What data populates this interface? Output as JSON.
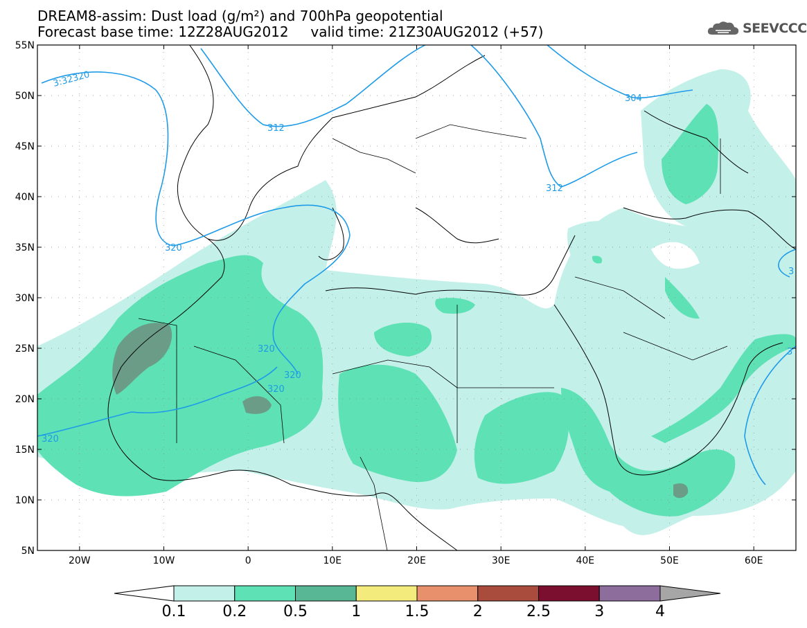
{
  "header": {
    "title_line1": "DREAM8-assim: Dust load (g/m²) and 700hPa geopotential",
    "title_line2": "Forecast base time: 12Z28AUG2012     valid time: 21Z30AUG2012 (+57)"
  },
  "logo": {
    "text": "SEEVCCC",
    "icon": "cloud-logo-icon"
  },
  "axes": {
    "lat_labels": [
      "55N",
      "50N",
      "45N",
      "40N",
      "35N",
      "30N",
      "25N",
      "20N",
      "15N",
      "10N",
      "5N"
    ],
    "lat_values": [
      55,
      50,
      45,
      40,
      35,
      30,
      25,
      20,
      15,
      10,
      5
    ],
    "lon_labels": [
      "20W",
      "10W",
      "0",
      "10E",
      "20E",
      "30E",
      "40E",
      "50E",
      "60E"
    ],
    "lon_values": [
      -20,
      -10,
      0,
      10,
      20,
      30,
      40,
      50,
      60
    ],
    "lon_range": [
      -25,
      65
    ],
    "lat_range": [
      5,
      55
    ]
  },
  "contours": {
    "labels": [
      "3:32320",
      "312",
      "304",
      "312",
      "320",
      "320",
      "320",
      "320",
      "320",
      "3",
      "3"
    ]
  },
  "colorbar": {
    "labels": [
      "0.1",
      "0.2",
      "0.5",
      "1",
      "1.5",
      "2",
      "2.5",
      "3",
      "4"
    ],
    "colors": [
      "#c4f0ea",
      "#5ee1b4",
      "#58b795",
      "#f3eb7b",
      "#e8906b",
      "#a94b3d",
      "#7a0f30",
      "#8d6d9b",
      "#a6a6a6"
    ],
    "lower_extension_color": "#ffffff"
  },
  "legend_colors": {
    "dust_low": "#c4f0ea",
    "dust_mid": "#5ee1b4",
    "dust_high": "#58b795",
    "dust_peak": "#6b9c87",
    "contour_line": "#1e9be8",
    "coast": "#000000"
  }
}
